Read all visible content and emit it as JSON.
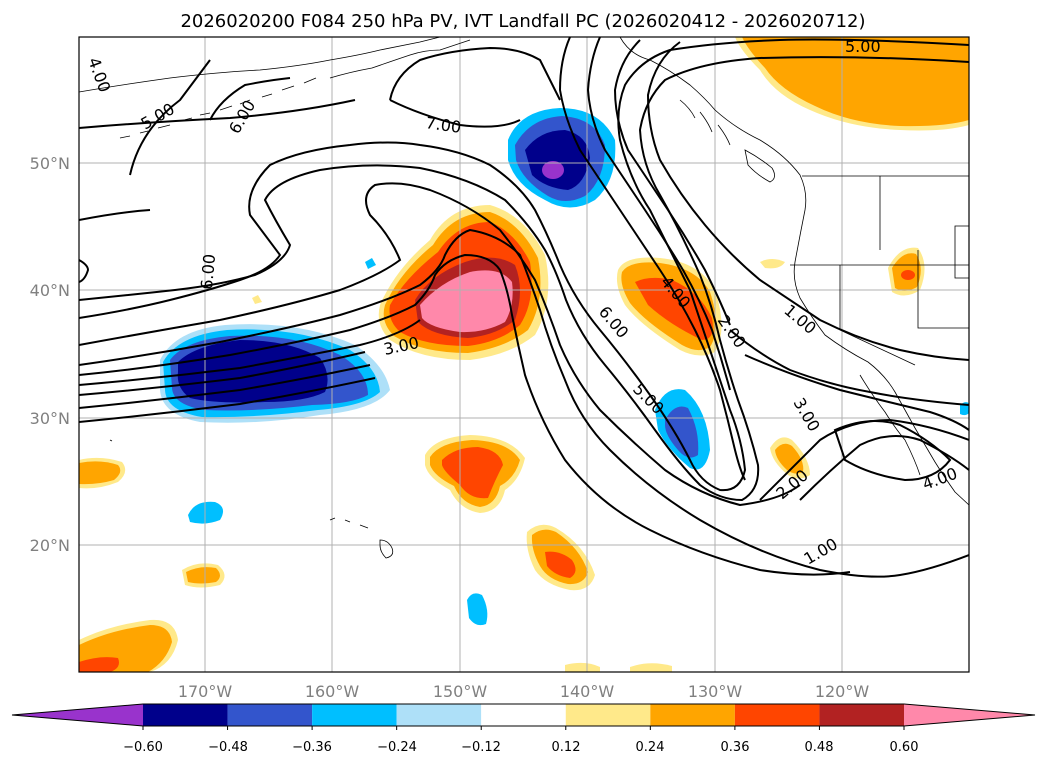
{
  "title": "2026020200 F084 250 hPa PV, IVT Landfall PC (2026020412 - 2026020712)",
  "map": {
    "projection": "cylindrical",
    "lon_range": [
      180,
      110
    ],
    "lat_range": [
      10,
      60
    ],
    "lat_ticks": [
      "50°N",
      "40°N",
      "30°N",
      "20°N"
    ],
    "lon_ticks": [
      "170°W",
      "160°W",
      "150°W",
      "140°W",
      "130°W",
      "120°W"
    ]
  },
  "contour_labels": [
    "4.00",
    "5.00",
    "6.00",
    "7.00",
    "5.00",
    "6.00",
    "3.00",
    "4.00",
    "2.00",
    "6.00",
    "5.00",
    "1.00",
    "3.00",
    "2.00",
    "1.00",
    "4.00"
  ],
  "colorbar": {
    "ticks": [
      "−0.60",
      "−0.48",
      "−0.36",
      "−0.24",
      "−0.12",
      "0.12",
      "0.24",
      "0.36",
      "0.48",
      "0.60"
    ],
    "colors": [
      "#9933cc",
      "#00008b",
      "#3355cc",
      "#00bfff",
      "#aee0f8",
      "#ffffff",
      "#ffe98a",
      "#ffa500",
      "#ff4500",
      "#b22222",
      "#ff88aa"
    ]
  }
}
